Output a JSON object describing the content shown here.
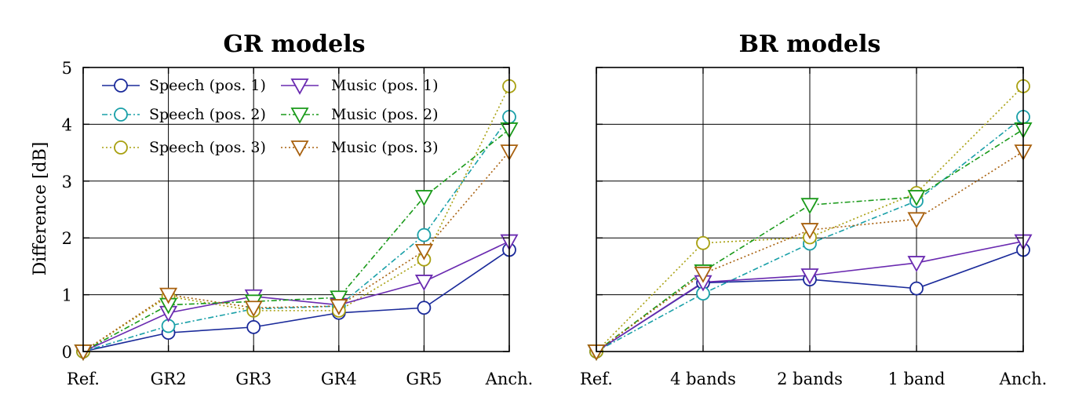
{
  "chart_data": [
    {
      "type": "line",
      "title": "GR models",
      "ylabel": "Difference [dB]",
      "xlabel": "",
      "categories": [
        "Ref.",
        "GR2",
        "GR3",
        "GR4",
        "GR5",
        "Anch."
      ],
      "ylim": [
        0,
        5
      ],
      "yticks": [
        0,
        1,
        2,
        3,
        4,
        5
      ],
      "grid": true,
      "legend": "top-left",
      "series": [
        {
          "name": "Speech (pos. 1)",
          "color": "#1a2a9a",
          "marker": "circle",
          "dash": "solid",
          "values": [
            0,
            0.33,
            0.43,
            0.68,
            0.77,
            1.79
          ]
        },
        {
          "name": "Speech (pos. 2)",
          "color": "#1aa0a8",
          "marker": "circle",
          "dash": "dashdot",
          "values": [
            0,
            0.45,
            0.75,
            0.8,
            2.05,
            4.13
          ]
        },
        {
          "name": "Speech (pos. 3)",
          "color": "#a8a010",
          "marker": "circle",
          "dash": "dotted",
          "values": [
            0,
            0.97,
            0.72,
            0.72,
            1.62,
            4.67
          ]
        },
        {
          "name": "Music (pos. 1)",
          "color": "#6a2ab0",
          "marker": "triangle-down",
          "dash": "solid",
          "values": [
            0,
            0.68,
            0.97,
            0.82,
            1.23,
            1.94
          ]
        },
        {
          "name": "Music (pos. 2)",
          "color": "#1a9a1a",
          "marker": "triangle-down",
          "dash": "dashdot",
          "values": [
            0,
            0.82,
            0.88,
            0.95,
            2.72,
            3.91
          ]
        },
        {
          "name": "Music (pos. 3)",
          "color": "#a8600e",
          "marker": "triangle-down",
          "dash": "dotted",
          "values": [
            0,
            1.0,
            0.77,
            0.8,
            1.77,
            3.52
          ]
        }
      ]
    },
    {
      "type": "line",
      "title": "BR models",
      "ylabel": "",
      "xlabel": "",
      "categories": [
        "Ref.",
        "4 bands",
        "2 bands",
        "1 band",
        "Anch."
      ],
      "ylim": [
        0,
        5
      ],
      "yticks": [
        0,
        1,
        2,
        3,
        4,
        5
      ],
      "grid": true,
      "series": [
        {
          "name": "Speech (pos. 1)",
          "color": "#1a2a9a",
          "marker": "circle",
          "dash": "solid",
          "values": [
            0,
            1.21,
            1.27,
            1.11,
            1.79
          ]
        },
        {
          "name": "Speech (pos. 2)",
          "color": "#1aa0a8",
          "marker": "circle",
          "dash": "dashdot",
          "values": [
            0,
            1.02,
            1.9,
            2.65,
            4.13
          ]
        },
        {
          "name": "Speech (pos. 3)",
          "color": "#a8a010",
          "marker": "circle",
          "dash": "dotted",
          "values": [
            0,
            1.91,
            2.01,
            2.79,
            4.67
          ]
        },
        {
          "name": "Music (pos. 1)",
          "color": "#6a2ab0",
          "marker": "triangle-down",
          "dash": "solid",
          "values": [
            0,
            1.22,
            1.34,
            1.56,
            1.94
          ]
        },
        {
          "name": "Music (pos. 2)",
          "color": "#1a9a1a",
          "marker": "triangle-down",
          "dash": "dashdot",
          "values": [
            0,
            1.41,
            2.58,
            2.72,
            3.91
          ]
        },
        {
          "name": "Music (pos. 3)",
          "color": "#a8600e",
          "marker": "triangle-down",
          "dash": "dotted",
          "values": [
            0,
            1.37,
            2.14,
            2.33,
            3.52
          ]
        }
      ]
    }
  ]
}
